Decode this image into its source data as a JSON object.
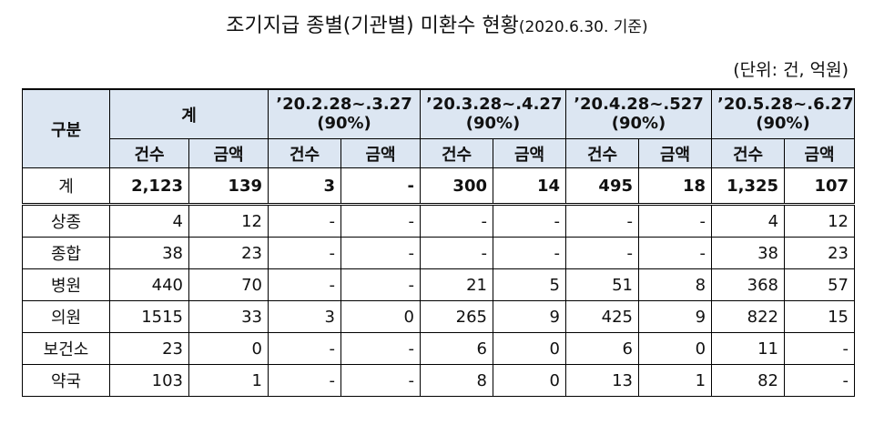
{
  "title": "조기지급 종별(기관별) 미환수 현황",
  "title_sub": "(2020.6.30. 기준)",
  "unit": "(단위: 건, 억원)",
  "headers": {
    "category": "구분",
    "total": "계",
    "periods": [
      {
        "line1": "’20.2.28~.3.27",
        "line2": "(90%)"
      },
      {
        "line1": "’20.3.28~.4.27",
        "line2": "(90%)"
      },
      {
        "line1": "’20.4.28~.527",
        "line2": "(90%)"
      },
      {
        "line1": "’20.5.28~.6.27",
        "line2": "(90%)"
      }
    ],
    "count": "건수",
    "amount": "금액"
  },
  "rows": [
    {
      "label": "계",
      "values": [
        "2,123",
        "139",
        "3",
        "-",
        "300",
        "14",
        "495",
        "18",
        "1,325",
        "107"
      ]
    },
    {
      "label": "상종",
      "values": [
        "4",
        "12",
        "-",
        "-",
        "-",
        "-",
        "-",
        "-",
        "4",
        "12"
      ]
    },
    {
      "label": "종합",
      "values": [
        "38",
        "23",
        "-",
        "-",
        "-",
        "-",
        "-",
        "-",
        "38",
        "23"
      ]
    },
    {
      "label": "병원",
      "values": [
        "440",
        "70",
        "-",
        "-",
        "21",
        "5",
        "51",
        "8",
        "368",
        "57"
      ]
    },
    {
      "label": "의원",
      "values": [
        "1515",
        "33",
        "3",
        "0",
        "265",
        "9",
        "425",
        "9",
        "822",
        "15"
      ]
    },
    {
      "label": "보건소",
      "values": [
        "23",
        "0",
        "-",
        "-",
        "6",
        "0",
        "6",
        "0",
        "11",
        "-"
      ]
    },
    {
      "label": "약국",
      "values": [
        "103",
        "1",
        "-",
        "-",
        "8",
        "0",
        "13",
        "1",
        "82",
        "-"
      ]
    }
  ]
}
